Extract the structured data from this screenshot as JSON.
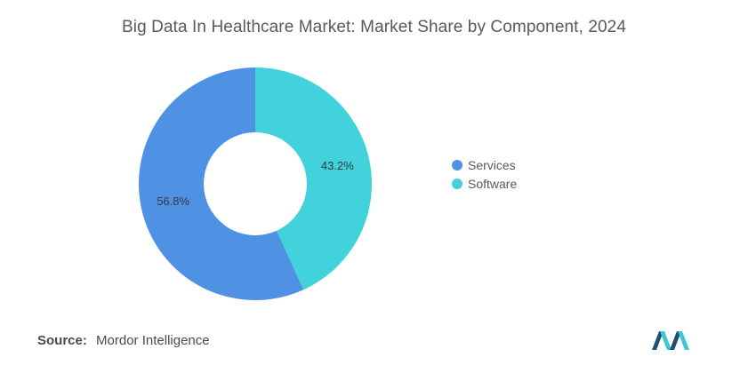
{
  "chart_data": {
    "type": "pie",
    "title": "Big Data In Healthcare Market: Market Share by Component, 2024",
    "donut": true,
    "categories": [
      "Services",
      "Software"
    ],
    "values": [
      56.8,
      43.2
    ],
    "value_labels": [
      "56.8%",
      "43.2%"
    ],
    "colors": [
      "#4f91e3",
      "#42d2db"
    ],
    "legend_position": "right"
  },
  "source": {
    "label": "Source:",
    "text": "Mordor Intelligence"
  },
  "logo": {
    "icon": "mordor-intelligence-logo",
    "colors": [
      "#1c4f78",
      "#3ec7d0"
    ]
  }
}
